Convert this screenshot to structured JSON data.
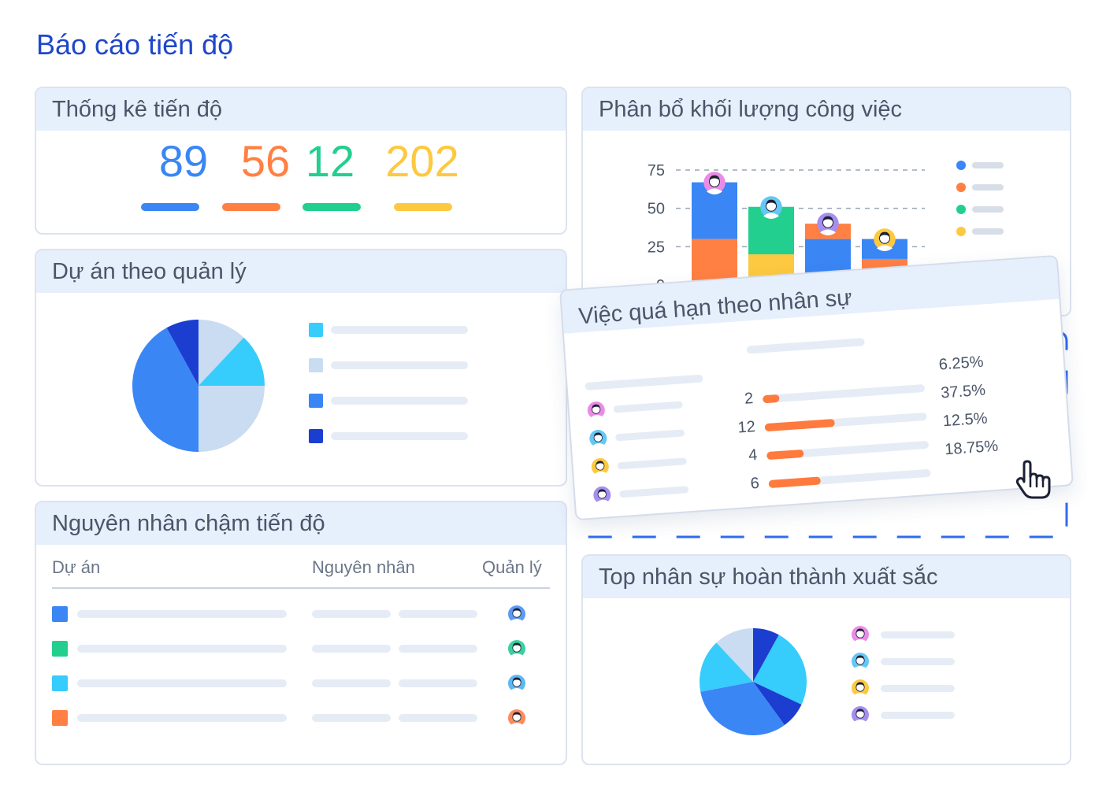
{
  "page": {
    "title": "Báo cáo tiến độ"
  },
  "progress_stats": {
    "title": "Thống kê tiến độ",
    "values": [
      {
        "value": "89",
        "color": "#3a86f5"
      },
      {
        "value": "56",
        "color": "#ff8042"
      },
      {
        "value": "12",
        "color": "#22cf8e"
      },
      {
        "value": "202",
        "color": "#fcc940"
      }
    ]
  },
  "projects_by_manager": {
    "title": "Dự án theo quản lý",
    "legend_colors": [
      "#36ccfb",
      "#c9dcf2",
      "#3a86f5",
      "#1b3ed1"
    ],
    "pie_colors": [
      "#c9dcf2",
      "#36ccfb",
      "#c9dcf2",
      "#3a86f5",
      "#1b3ed1"
    ]
  },
  "delay_causes": {
    "title": "Nguyên nhân chậm tiến độ",
    "columns": {
      "project": "Dự án",
      "cause": "Nguyên nhân",
      "manager": "Quản lý"
    },
    "row_colors": [
      "#3a86f5",
      "#22cf8e",
      "#36ccfb",
      "#ff8042"
    ],
    "avatar_colors": [
      "#5b9bf5",
      "#3ad0a0",
      "#5bb8f5",
      "#ff8a5c"
    ]
  },
  "workload": {
    "title": "Phân bổ khối lượng công việc",
    "legend_colors": [
      "#3a86f5",
      "#ff8042",
      "#22cf8e",
      "#fcc940"
    ],
    "avatar_colors": [
      "#e98ce6",
      "#64c7f5",
      "#a68ef0",
      "#fcc940"
    ]
  },
  "chart_data": {
    "type": "bar",
    "stacked": true,
    "title": "Phân bổ khối lượng công việc",
    "yticks": [
      0,
      25,
      50,
      75
    ],
    "ylim": [
      0,
      75
    ],
    "grid": "dashed horizontal",
    "categories": [
      "",
      "",
      "",
      ""
    ],
    "series": [
      {
        "color": "#ff8042",
        "values": [
          30,
          0,
          0,
          17
        ]
      },
      {
        "color": "#fcc940",
        "values": [
          0,
          20,
          0,
          0
        ]
      },
      {
        "color": "#22cf8e",
        "values": [
          0,
          31,
          0,
          0
        ]
      },
      {
        "color": "#3a86f5",
        "values": [
          37,
          0,
          30,
          13
        ]
      },
      {
        "color": "#ff8042",
        "values": [
          0,
          0,
          10,
          0
        ]
      }
    ]
  },
  "overdue": {
    "title": "Việc quá hạn theo nhân sự",
    "counts": [
      "2",
      "12",
      "4",
      "6"
    ],
    "percents": [
      "6.25%",
      "37.5%",
      "12.5%",
      "18.75%"
    ],
    "fills": [
      0.1,
      0.43,
      0.23,
      0.32
    ],
    "avatar_colors": [
      "#e98ce6",
      "#64c7f5",
      "#fcc940",
      "#a68ef0"
    ]
  },
  "top_staff": {
    "title": "Top nhân sự hoàn thành xuất sắc",
    "avatar_colors": [
      "#e98ce6",
      "#64c7f5",
      "#fcc940",
      "#a68ef0"
    ],
    "pie_colors": [
      "#1b3ed1",
      "#36ccfb",
      "#1b3ed1",
      "#3a86f5",
      "#36ccfb",
      "#c9dcf2"
    ]
  }
}
